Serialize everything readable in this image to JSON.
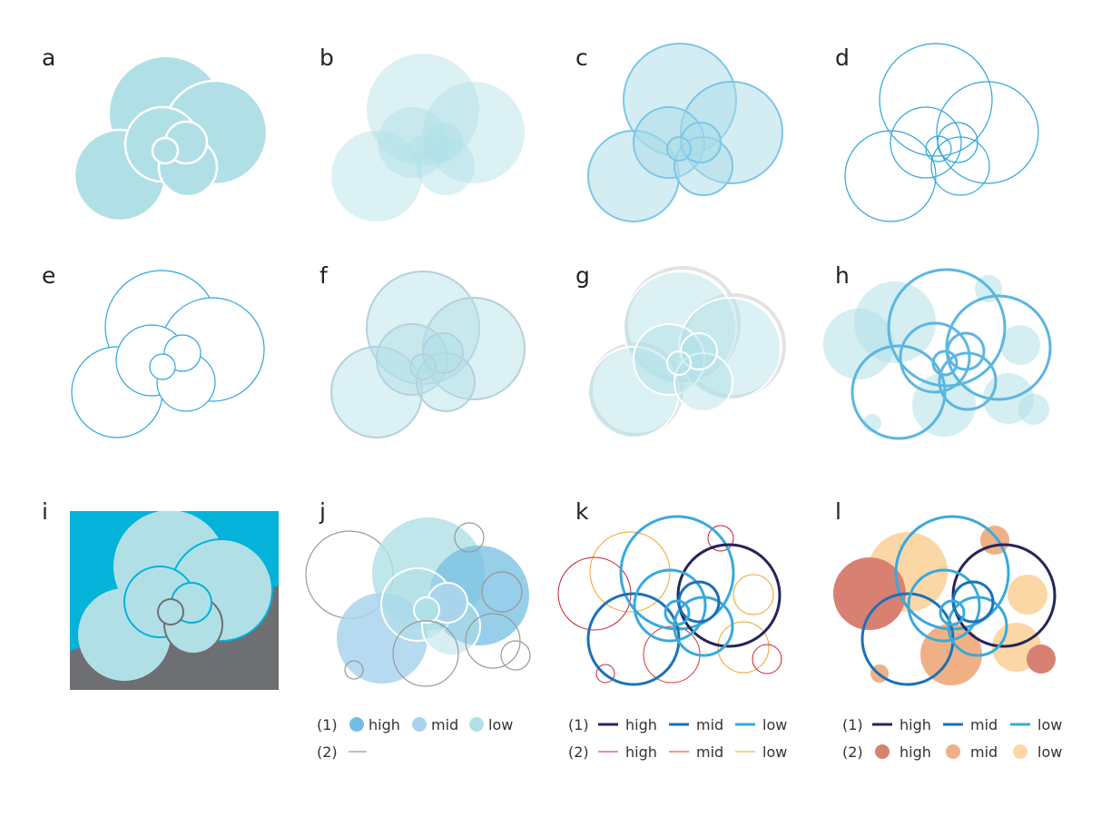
{
  "panels": [
    {
      "label": "a"
    },
    {
      "label": "b"
    },
    {
      "label": "c"
    },
    {
      "label": "d"
    },
    {
      "label": "e"
    },
    {
      "label": "f"
    },
    {
      "label": "g"
    },
    {
      "label": "h"
    },
    {
      "label": "i"
    },
    {
      "label": "j"
    },
    {
      "label": "k"
    },
    {
      "label": "l"
    }
  ],
  "legends": {
    "j": {
      "row1_label": "(1)",
      "row2_label": "(2)",
      "row1": [
        {
          "label": "high",
          "color": "#74bde2"
        },
        {
          "label": "mid",
          "color": "#a9d4ec"
        },
        {
          "label": "low",
          "color": "#afe0e5"
        }
      ],
      "row2_line_color": "#999999"
    },
    "k": {
      "row1_label": "(1)",
      "row2_label": "(2)",
      "row1": [
        {
          "label": "high",
          "color": "#25255a"
        },
        {
          "label": "mid",
          "color": "#1b71b8"
        },
        {
          "label": "low",
          "color": "#38a9dc"
        }
      ],
      "row2": [
        {
          "label": "high",
          "color": "#c8202f"
        },
        {
          "label": "mid",
          "color": "#d8342f"
        },
        {
          "label": "low",
          "color": "#f0a22c"
        }
      ]
    },
    "l": {
      "row1_label": "(1)",
      "row2_label": "(2)",
      "row1": [
        {
          "label": "high",
          "color": "#25255a"
        },
        {
          "label": "mid",
          "color": "#1b71b8"
        },
        {
          "label": "low",
          "color": "#38a9dc"
        }
      ],
      "row2": [
        {
          "label": "high",
          "color": "#d88072"
        },
        {
          "label": "mid",
          "color": "#f0b086"
        },
        {
          "label": "low",
          "color": "#fbd7a6"
        }
      ]
    }
  },
  "colors": {
    "teal_fill": "#b0e0e6",
    "light_teal_fill": "#d5eff3",
    "blue_stroke": "#2ea6d8",
    "mid_blue_stroke": "#5cb6e0",
    "panel_i_top": "#04b2da",
    "panel_i_bottom": "#6e6f73",
    "grey_stroke": "#999999"
  }
}
